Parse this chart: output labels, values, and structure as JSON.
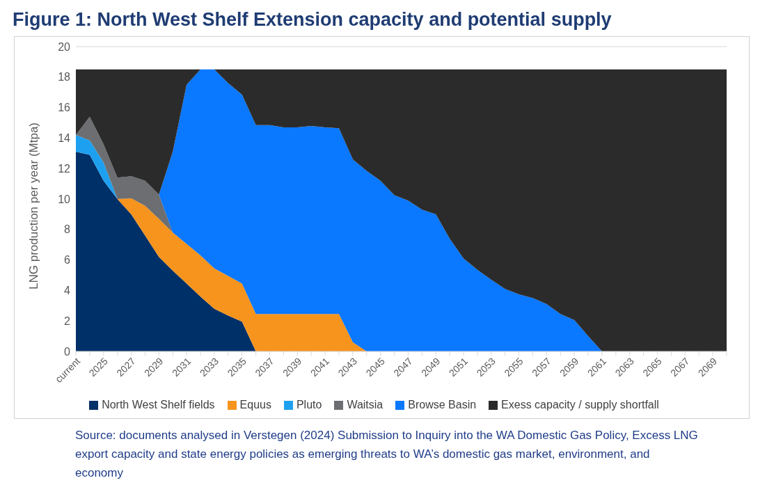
{
  "chart_data": {
    "type": "area",
    "stacked": true,
    "title": "Figure 1: North West Shelf Extension capacity and potential supply",
    "ylabel": "LNG production per year (Mtpa)",
    "categories": [
      "current",
      null,
      "2025",
      null,
      "2027",
      null,
      "2029",
      null,
      "2031",
      null,
      "2033",
      null,
      "2035",
      null,
      "2037",
      null,
      "2039",
      null,
      "2041",
      null,
      "2043",
      null,
      "2045",
      null,
      "2047",
      null,
      "2049",
      null,
      "2051",
      null,
      "2053",
      null,
      "2055",
      null,
      "2057",
      null,
      "2059",
      null,
      "2061",
      null,
      "2063",
      null,
      "2065",
      null,
      "2067",
      null,
      "2069",
      null
    ],
    "series": [
      {
        "name": "North West Shelf fields",
        "color": "#003068",
        "values": [
          13.1,
          12.9,
          11.2,
          10.0,
          9.0,
          7.6,
          6.2,
          5.3,
          4.45,
          3.6,
          2.8,
          2.35,
          1.95,
          0,
          0,
          0,
          0,
          0,
          0,
          0,
          0,
          0,
          0,
          0,
          0,
          0,
          0,
          0,
          0,
          0,
          0,
          0,
          0,
          0,
          0,
          0,
          0,
          0,
          0,
          0,
          0,
          0,
          0,
          0,
          0,
          0,
          0,
          0
        ]
      },
      {
        "name": "Equus",
        "color": "#f7941d",
        "values": [
          null,
          null,
          null,
          0,
          1.05,
          1.95,
          2.5,
          2.5,
          2.6,
          2.7,
          2.65,
          2.6,
          2.5,
          2.45,
          2.45,
          2.45,
          2.45,
          2.45,
          2.45,
          2.45,
          0.6,
          0,
          null,
          null,
          null,
          null,
          null,
          null,
          null,
          null,
          null,
          null,
          null,
          null,
          null,
          null,
          null,
          null,
          null,
          null,
          null,
          null,
          null,
          null,
          null,
          null,
          null,
          null
        ]
      },
      {
        "name": "Pluto",
        "color": "#1ea0f0",
        "values": [
          1.1,
          0.95,
          1.2,
          0,
          null,
          null,
          null,
          null,
          null,
          null,
          null,
          null,
          null,
          null,
          null,
          null,
          null,
          null,
          null,
          null,
          null,
          null,
          null,
          null,
          null,
          null,
          null,
          null,
          null,
          null,
          null,
          null,
          null,
          null,
          null,
          null,
          null,
          null,
          null,
          null,
          null,
          null,
          null,
          null,
          null,
          null,
          null,
          null
        ]
      },
      {
        "name": "Waitsia",
        "color": "#6d6e71",
        "values": [
          0,
          1.55,
          1.2,
          1.4,
          1.45,
          1.65,
          1.6,
          0,
          null,
          null,
          null,
          null,
          null,
          null,
          null,
          null,
          null,
          null,
          null,
          null,
          null,
          null,
          null,
          null,
          null,
          null,
          null,
          null,
          null,
          null,
          null,
          null,
          null,
          null,
          null,
          null,
          null,
          null,
          null,
          null,
          null,
          null,
          null,
          null,
          null,
          null,
          null,
          null
        ]
      },
      {
        "name": "Browse Basin",
        "color": "#0a78ff",
        "values": [
          null,
          null,
          null,
          null,
          null,
          null,
          0,
          5.3,
          10.45,
          12.2,
          13.05,
          12.65,
          12.4,
          12.4,
          12.4,
          12.25,
          12.25,
          12.35,
          12.25,
          12.2,
          12.0,
          11.85,
          11.2,
          10.25,
          9.9,
          9.3,
          9.0,
          7.4,
          6.1,
          5.35,
          4.7,
          4.1,
          3.75,
          3.5,
          3.1,
          2.45,
          2.05,
          1.0,
          0,
          0,
          0,
          0,
          0,
          0,
          0,
          0,
          0,
          0
        ]
      },
      {
        "name": "Exess capacity / supply shortfall",
        "color": "#2b2b2b",
        "values": [
          4.3,
          3.1,
          4.9,
          7.1,
          7.0,
          7.3,
          8.2,
          5.4,
          1.0,
          0,
          0,
          0.9,
          1.65,
          3.65,
          3.65,
          3.8,
          3.8,
          3.7,
          3.8,
          3.85,
          5.9,
          6.65,
          7.3,
          8.25,
          8.6,
          9.2,
          9.5,
          11.1,
          12.4,
          13.15,
          13.8,
          14.4,
          14.75,
          15.0,
          15.4,
          16.05,
          16.45,
          17.5,
          18.5,
          18.5,
          18.5,
          18.5,
          18.5,
          18.5,
          18.5,
          18.5,
          18.5,
          18.5
        ]
      }
    ],
    "ylim": [
      0,
      20
    ],
    "yticks": [
      0,
      2,
      4,
      6,
      8,
      10,
      12,
      14,
      16,
      18,
      20
    ],
    "grid": "y",
    "legend": "bottom",
    "annotations": [
      "Source: documents analysed in Verstegen (2024) Submission to Inquiry into the WA Domestic Gas Policy, Excess LNG export capacity and state energy policies as emerging threats to WA’s domestic gas market, environment, and economy"
    ]
  }
}
